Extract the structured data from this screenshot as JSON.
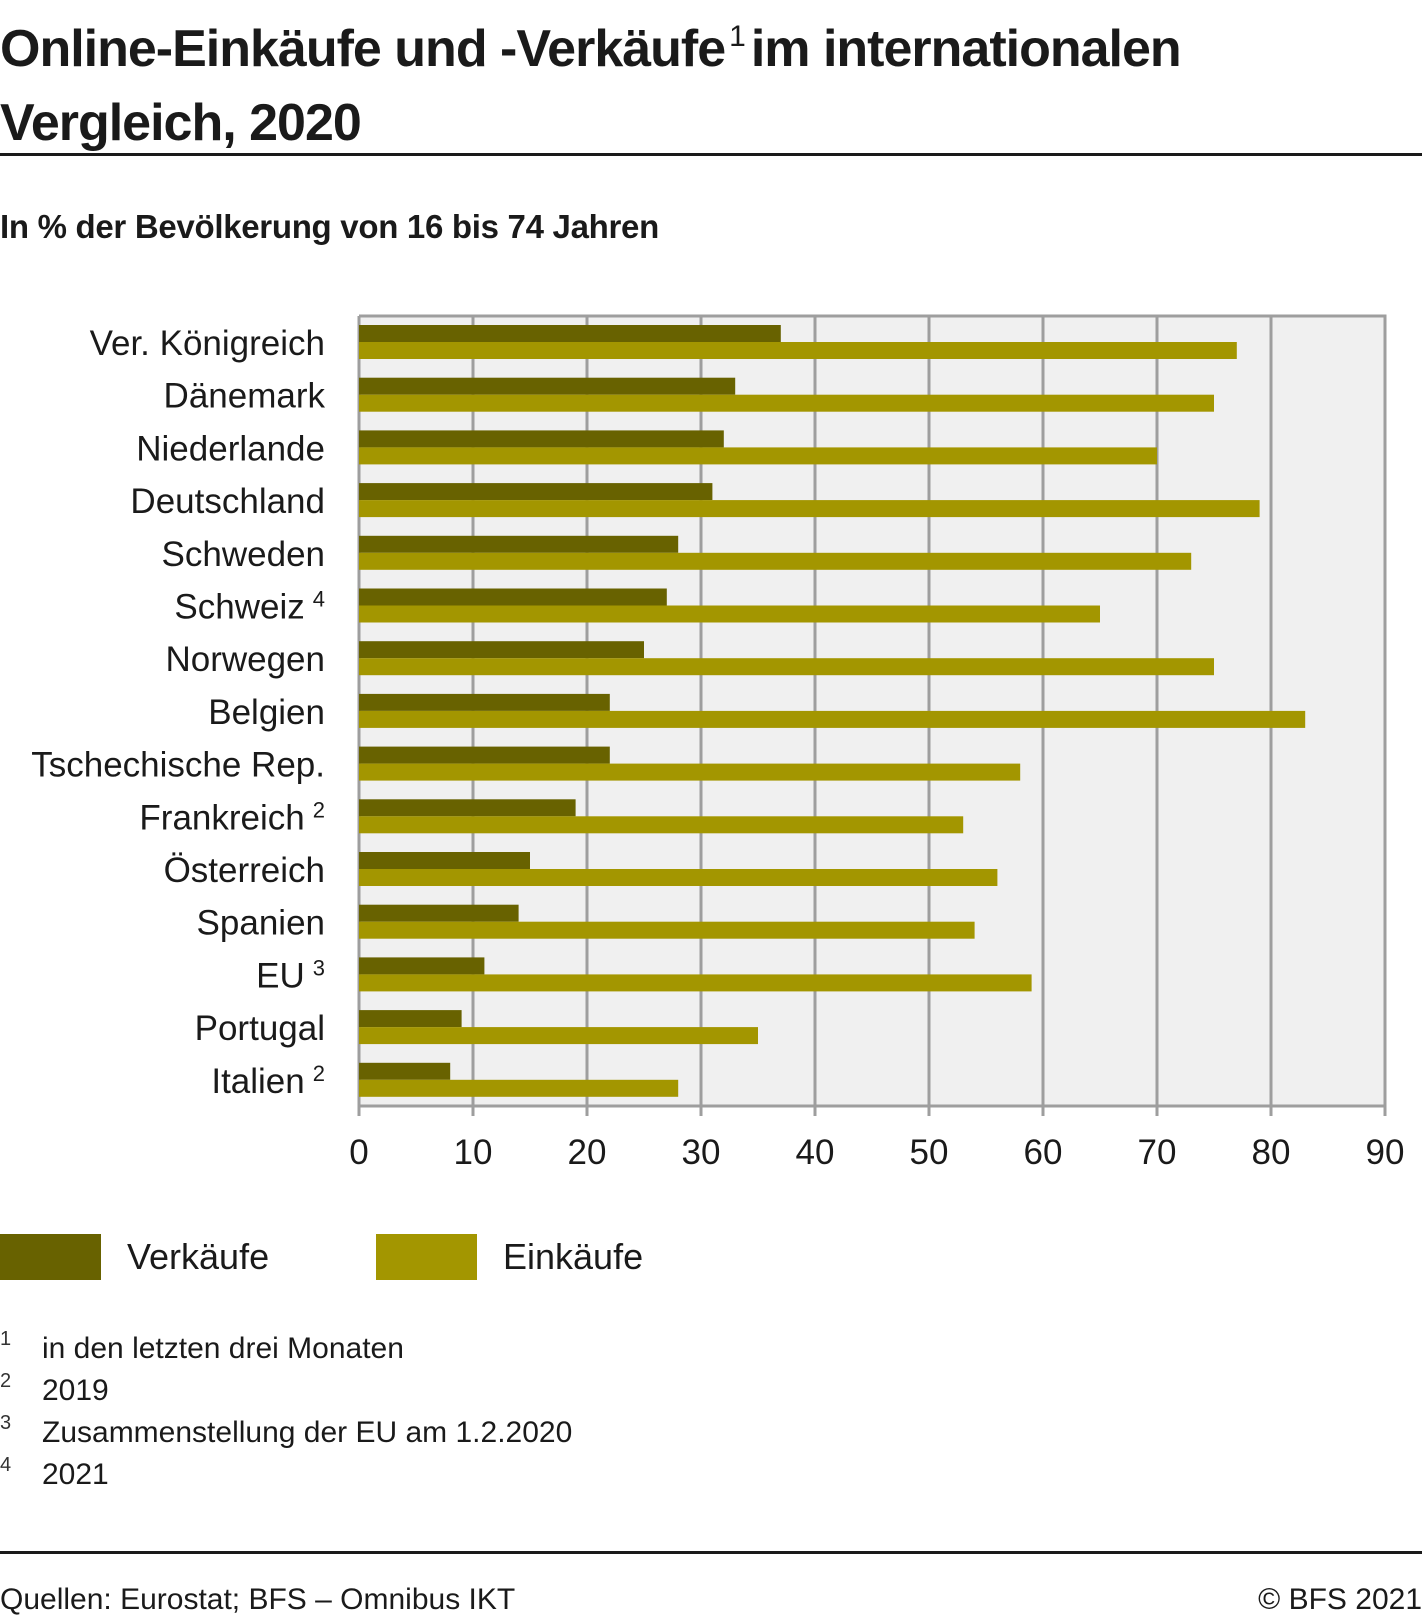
{
  "header": {
    "title_part1": "Online-Einkäufe und -Verkäufe",
    "title_sup": "1",
    "title_part2": "im internationalen",
    "title_line2": "Vergleich, 2020",
    "subtitle": "In % der Bevölkerung von 16 bis 74 Jahren"
  },
  "chart_data": {
    "type": "bar",
    "orientation": "horizontal",
    "title": "Online-Einkäufe und -Verkäufe im internationalen Vergleich, 2020",
    "subtitle": "In % der Bevölkerung von 16 bis 74 Jahren",
    "xlabel": "",
    "ylabel": "",
    "xlim": [
      0,
      90
    ],
    "xticks": [
      0,
      10,
      20,
      30,
      40,
      50,
      60,
      70,
      80,
      90
    ],
    "grid": true,
    "legend_position": "bottom-left",
    "categories": [
      "Ver. Königreich",
      "Dänemark",
      "Niederlande",
      "Deutschland",
      "Schweden",
      "Schweiz",
      "Norwegen",
      "Belgien",
      "Tschechische Rep.",
      "Frankreich",
      "Österreich",
      "Spanien",
      "EU",
      "Portugal",
      "Italien"
    ],
    "category_footnotes": [
      "",
      "",
      "",
      "",
      "",
      "4",
      "",
      "",
      "",
      "2",
      "",
      "",
      "3",
      "",
      "2"
    ],
    "series": [
      {
        "name": "Verkäufe",
        "color": "#686200",
        "values": [
          37,
          33,
          32,
          31,
          28,
          27,
          25,
          22,
          22,
          19,
          15,
          14,
          11,
          9,
          8
        ]
      },
      {
        "name": "Einkäufe",
        "color": "#a39600",
        "values": [
          77,
          75,
          70,
          79,
          73,
          65,
          75,
          83,
          58,
          53,
          56,
          54,
          59,
          35,
          28
        ]
      }
    ]
  },
  "colors": {
    "plot_background": "#f0f0f0",
    "gridline": "#9e9e9e",
    "verkaeufe": "#686200",
    "einkaeufe": "#a39600"
  },
  "legend": [
    {
      "label": "Verkäufe",
      "color": "#686200"
    },
    {
      "label": "Einkäufe",
      "color": "#a39600"
    }
  ],
  "footnotes": [
    {
      "num": "1",
      "text": "in den letzten drei Monaten"
    },
    {
      "num": "2",
      "text": "2019"
    },
    {
      "num": "3",
      "text": "Zusammenstellung der EU am 1.2.2020"
    },
    {
      "num": "4",
      "text": "2021"
    }
  ],
  "footer": {
    "source": "Quellen: Eurostat; BFS – Omnibus IKT",
    "copyright": "© BFS 2021"
  }
}
